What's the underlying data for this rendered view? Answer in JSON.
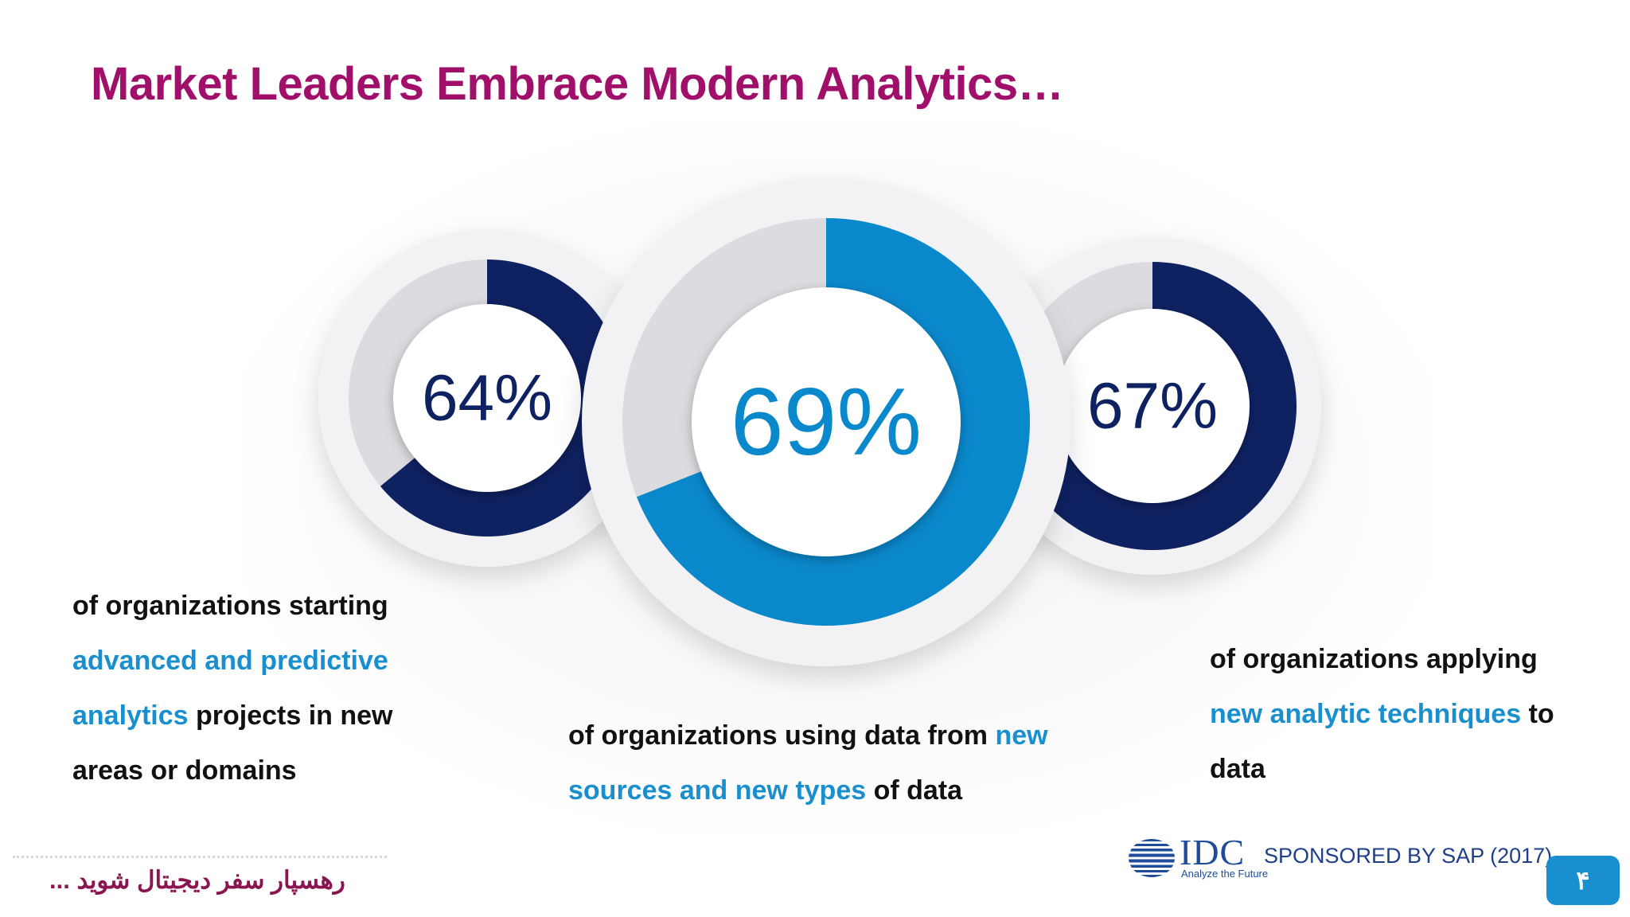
{
  "title": "Market Leaders Embrace Modern Analytics…",
  "chart_data": [
    {
      "type": "donut",
      "value": 64,
      "label": "64%",
      "color": "#0e2161",
      "track_color": "#dcdce0",
      "description": [
        {
          "text": "of organizations starting ",
          "highlight": false
        },
        {
          "text": "advanced and predictive analytics",
          "highlight": true
        },
        {
          "text": " projects in new areas or domains",
          "highlight": false
        }
      ]
    },
    {
      "type": "donut",
      "value": 69,
      "label": "69%",
      "color": "#0a88cc",
      "track_color": "#dcdce0",
      "description": [
        {
          "text": "of organizations using data from ",
          "highlight": false
        },
        {
          "text": "new sources and new types",
          "highlight": true
        },
        {
          "text": " of data",
          "highlight": false
        }
      ]
    },
    {
      "type": "donut",
      "value": 67,
      "label": "67%",
      "color": "#0e2161",
      "track_color": "#dcdce0",
      "description": [
        {
          "text": "of organizations applying ",
          "highlight": false
        },
        {
          "text": "new analytic techniques",
          "highlight": true
        },
        {
          "text": " to data",
          "highlight": false
        }
      ]
    }
  ],
  "footer": {
    "persian_text": "رهسپار سفر دیجیتال شوید ...",
    "logo_text": "IDC",
    "logo_tagline": "Analyze the Future",
    "sponsor": "SPONSORED BY SAP (2017)",
    "page_number": "۴"
  },
  "colors": {
    "title": "#a0106a",
    "highlight": "#1a8fd0",
    "dark_navy": "#0e2161",
    "badge": "#1a8fd0"
  }
}
